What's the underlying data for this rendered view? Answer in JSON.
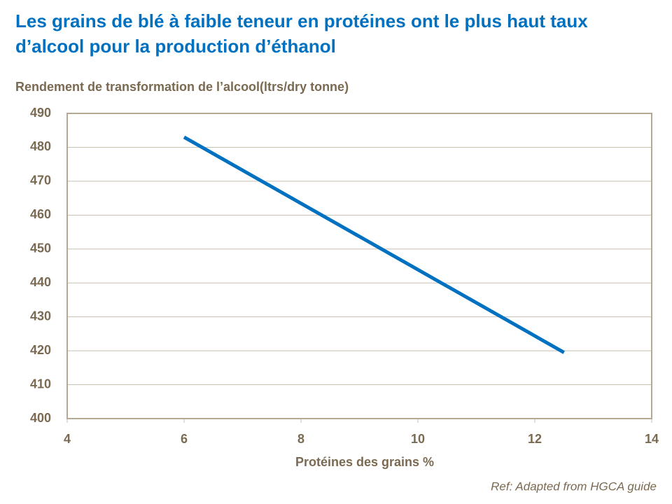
{
  "chart_data": {
    "type": "line",
    "title": "Les grains de blé à faible teneur en protéines ont le plus haut taux d’alcool pour la production d’éthanol",
    "y_label": "Rendement de transformation de l’alcool(ltrs/dry tonne)",
    "x_label": "Protéines des grains %",
    "source": "Ref: Adapted from HGCA guide",
    "x": [
      6,
      12.5
    ],
    "values": [
      483,
      419.5
    ],
    "color": "#0070c0",
    "xlim": [
      4,
      14
    ],
    "xticks": [
      4,
      6,
      8,
      10,
      12,
      14
    ],
    "ylim": [
      400,
      490
    ],
    "yticks": [
      400,
      410,
      420,
      430,
      440,
      450,
      460,
      470,
      480,
      490
    ],
    "grid": true
  }
}
